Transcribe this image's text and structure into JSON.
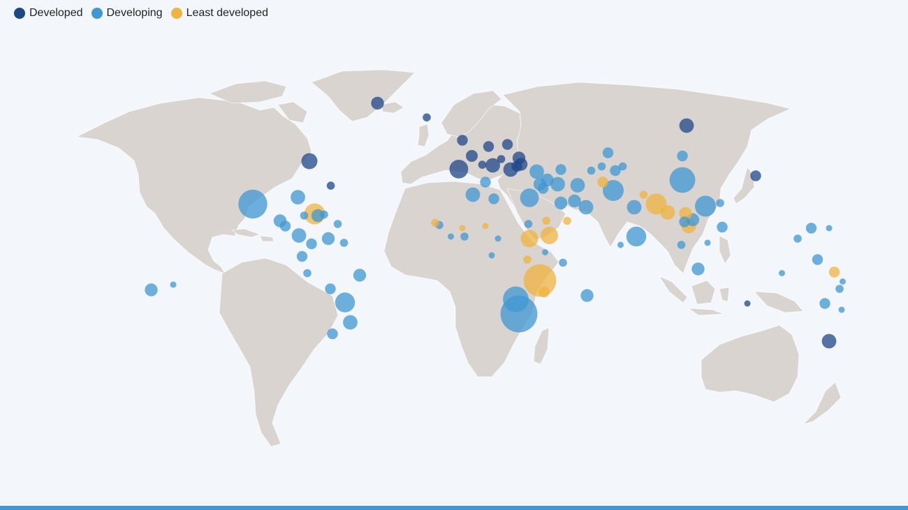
{
  "legend": {
    "items": [
      {
        "label": "Developed",
        "color": "#1f4788"
      },
      {
        "label": "Developing",
        "color": "#3f97d3"
      },
      {
        "label": "Least developed",
        "color": "#f0b340"
      }
    ]
  },
  "map": {
    "land_color": "#d9d4d0",
    "background": "#f3f7fc",
    "points": [
      {
        "lon": -42.5,
        "lat": 71.7,
        "cat": "Developed",
        "v": 3
      },
      {
        "lon": -19.0,
        "lat": 64.9,
        "cat": "Developed",
        "v": 1
      },
      {
        "lon": -2.0,
        "lat": 54.0,
        "cat": "Developed",
        "v": 2
      },
      {
        "lon": 2.5,
        "lat": 46.5,
        "cat": "Developed",
        "v": 2.5
      },
      {
        "lon": 10.5,
        "lat": 51.0,
        "cat": "Developed",
        "v": 2
      },
      {
        "lon": 19.5,
        "lat": 52.0,
        "cat": "Developed",
        "v": 2
      },
      {
        "lon": -3.7,
        "lat": 40.2,
        "cat": "Developed",
        "v": 7
      },
      {
        "lon": 12.5,
        "lat": 42.0,
        "cat": "Developed",
        "v": 4
      },
      {
        "lon": 16.5,
        "lat": 45.0,
        "cat": "Developed",
        "v": 1
      },
      {
        "lon": 21.0,
        "lat": 40.0,
        "cat": "Developed",
        "v": 4
      },
      {
        "lon": 25.0,
        "lat": 45.5,
        "cat": "Developed",
        "v": 3
      },
      {
        "lon": 24.0,
        "lat": 41.5,
        "cat": "Developed",
        "v": 2
      },
      {
        "lon": 26.0,
        "lat": 42.5,
        "cat": "Developed",
        "v": 3
      },
      {
        "lon": 7.5,
        "lat": 42.3,
        "cat": "Developed",
        "v": 1
      },
      {
        "lon": 105.0,
        "lat": 61.0,
        "cat": "Developed",
        "v": 4
      },
      {
        "lon": -75.0,
        "lat": 44.0,
        "cat": "Developed",
        "v": 5
      },
      {
        "lon": -64.8,
        "lat": 32.3,
        "cat": "Developed",
        "v": 1
      },
      {
        "lon": 138.0,
        "lat": 37.0,
        "cat": "Developed",
        "v": 2
      },
      {
        "lon": 134.0,
        "lat": -24.0,
        "cat": "Developed",
        "v": 0.5
      },
      {
        "lon": 173.0,
        "lat": -42.0,
        "cat": "Developed",
        "v": 4
      },
      {
        "lon": -102.0,
        "lat": 23.5,
        "cat": "Developing",
        "v": 18
      },
      {
        "lon": -80.5,
        "lat": 26.8,
        "cat": "Developing",
        "v": 4
      },
      {
        "lon": -71.0,
        "lat": 18.0,
        "cat": "Developing",
        "v": 3
      },
      {
        "lon": -77.5,
        "lat": 18.0,
        "cat": "Developing",
        "v": 1
      },
      {
        "lon": -68.0,
        "lat": 18.5,
        "cat": "Developing",
        "v": 1
      },
      {
        "lon": -61.5,
        "lat": 14.0,
        "cat": "Developing",
        "v": 1
      },
      {
        "lon": -89.0,
        "lat": 15.5,
        "cat": "Developing",
        "v": 3
      },
      {
        "lon": -86.5,
        "lat": 13.0,
        "cat": "Developing",
        "v": 2
      },
      {
        "lon": -80.0,
        "lat": 8.5,
        "cat": "Developing",
        "v": 4
      },
      {
        "lon": -74.0,
        "lat": 4.5,
        "cat": "Developing",
        "v": 2
      },
      {
        "lon": -66.0,
        "lat": 7.0,
        "cat": "Developing",
        "v": 3
      },
      {
        "lon": -58.5,
        "lat": 5.0,
        "cat": "Developing",
        "v": 1
      },
      {
        "lon": -78.5,
        "lat": -1.5,
        "cat": "Developing",
        "v": 2
      },
      {
        "lon": -76.0,
        "lat": -9.5,
        "cat": "Developing",
        "v": 1
      },
      {
        "lon": -51.0,
        "lat": -10.5,
        "cat": "Developing",
        "v": 3
      },
      {
        "lon": -65.0,
        "lat": -17.0,
        "cat": "Developing",
        "v": 2
      },
      {
        "lon": -58.0,
        "lat": -23.5,
        "cat": "Developing",
        "v": 8
      },
      {
        "lon": -55.5,
        "lat": -33.0,
        "cat": "Developing",
        "v": 4
      },
      {
        "lon": -64.0,
        "lat": -38.5,
        "cat": "Developing",
        "v": 2
      },
      {
        "lon": -150.5,
        "lat": -17.5,
        "cat": "Developing",
        "v": 3
      },
      {
        "lon": -140.0,
        "lat": -15.0,
        "cat": "Developing",
        "v": 0.5
      },
      {
        "lon": 3.0,
        "lat": 28.0,
        "cat": "Developing",
        "v": 4
      },
      {
        "lon": 13.0,
        "lat": 26.0,
        "cat": "Developing",
        "v": 2
      },
      {
        "lon": 30.0,
        "lat": 26.5,
        "cat": "Developing",
        "v": 7
      },
      {
        "lon": 9.0,
        "lat": 34.0,
        "cat": "Developing",
        "v": 2
      },
      {
        "lon": 35.0,
        "lat": 33.0,
        "cat": "Developing",
        "v": 3
      },
      {
        "lon": 36.5,
        "lat": 31.0,
        "cat": "Developing",
        "v": 2
      },
      {
        "lon": 43.5,
        "lat": 33.0,
        "cat": "Developing",
        "v": 4
      },
      {
        "lon": 38.5,
        "lat": 35.0,
        "cat": "Developing",
        "v": 3
      },
      {
        "lon": 33.5,
        "lat": 39.0,
        "cat": "Developing",
        "v": 4
      },
      {
        "lon": 45.0,
        "lat": 40.0,
        "cat": "Developing",
        "v": 2
      },
      {
        "lon": 53.0,
        "lat": 32.5,
        "cat": "Developing",
        "v": 4
      },
      {
        "lon": 45.0,
        "lat": 24.0,
        "cat": "Developing",
        "v": 3
      },
      {
        "lon": 51.5,
        "lat": 25.0,
        "cat": "Developing",
        "v": 3
      },
      {
        "lon": 57.0,
        "lat": 22.0,
        "cat": "Developing",
        "v": 4
      },
      {
        "lon": 59.5,
        "lat": 39.5,
        "cat": "Developing",
        "v": 1
      },
      {
        "lon": 64.5,
        "lat": 41.5,
        "cat": "Developing",
        "v": 1
      },
      {
        "lon": 70.0,
        "lat": 30.0,
        "cat": "Developing",
        "v": 9
      },
      {
        "lon": 67.5,
        "lat": 48.0,
        "cat": "Developing",
        "v": 2
      },
      {
        "lon": 71.0,
        "lat": 39.5,
        "cat": "Developing",
        "v": 2
      },
      {
        "lon": 74.5,
        "lat": 41.5,
        "cat": "Developing",
        "v": 1
      },
      {
        "lon": 103.0,
        "lat": 46.5,
        "cat": "Developing",
        "v": 2
      },
      {
        "lon": 103.0,
        "lat": 35.0,
        "cat": "Developing",
        "v": 14
      },
      {
        "lon": 80.0,
        "lat": 22.0,
        "cat": "Developing",
        "v": 4
      },
      {
        "lon": 81.0,
        "lat": 8.0,
        "cat": "Developing",
        "v": 8
      },
      {
        "lon": 73.5,
        "lat": 4.0,
        "cat": "Developing",
        "v": 0.5
      },
      {
        "lon": 114.0,
        "lat": 22.5,
        "cat": "Developing",
        "v": 9
      },
      {
        "lon": 121.0,
        "lat": 24.0,
        "cat": "Developing",
        "v": 1
      },
      {
        "lon": 108.0,
        "lat": 16.0,
        "cat": "Developing",
        "v": 3
      },
      {
        "lon": 104.0,
        "lat": 15.0,
        "cat": "Developing",
        "v": 2
      },
      {
        "lon": 102.5,
        "lat": 4.0,
        "cat": "Developing",
        "v": 1
      },
      {
        "lon": 110.5,
        "lat": -7.5,
        "cat": "Developing",
        "v": 3
      },
      {
        "lon": 122.0,
        "lat": 12.5,
        "cat": "Developing",
        "v": 2
      },
      {
        "lon": 115.0,
        "lat": 5.0,
        "cat": "Developing",
        "v": 0.5
      },
      {
        "lon": 29.5,
        "lat": 14.0,
        "cat": "Developing",
        "v": 1
      },
      {
        "lon": 15.0,
        "lat": 7.0,
        "cat": "Developing",
        "v": 0.5
      },
      {
        "lon": 12.0,
        "lat": -1.0,
        "cat": "Developing",
        "v": 0.5
      },
      {
        "lon": 37.5,
        "lat": 0.5,
        "cat": "Developing",
        "v": 0.5
      },
      {
        "lon": 46.0,
        "lat": -4.5,
        "cat": "Developing",
        "v": 1
      },
      {
        "lon": 57.5,
        "lat": -20.2,
        "cat": "Developing",
        "v": 3
      },
      {
        "lon": 23.5,
        "lat": -22.0,
        "cat": "Developing",
        "v": 14
      },
      {
        "lon": 25.0,
        "lat": -29.0,
        "cat": "Developing",
        "v": 30
      },
      {
        "lon": -13.0,
        "lat": 13.5,
        "cat": "Developing",
        "v": 1
      },
      {
        "lon": -1.0,
        "lat": 8.0,
        "cat": "Developing",
        "v": 1
      },
      {
        "lon": -7.5,
        "lat": 8.0,
        "cat": "Developing",
        "v": 0.5
      },
      {
        "lon": 150.5,
        "lat": -9.5,
        "cat": "Developing",
        "v": 0.5
      },
      {
        "lon": 158.0,
        "lat": 7.0,
        "cat": "Developing",
        "v": 1
      },
      {
        "lon": 164.5,
        "lat": 12.0,
        "cat": "Developing",
        "v": 2
      },
      {
        "lon": 173.0,
        "lat": 12.0,
        "cat": "Developing",
        "v": 0.5
      },
      {
        "lon": 167.5,
        "lat": -3.0,
        "cat": "Developing",
        "v": 2
      },
      {
        "lon": 178.0,
        "lat": -17.0,
        "cat": "Developing",
        "v": 1
      },
      {
        "lon": 179.5,
        "lat": -13.5,
        "cat": "Developing",
        "v": 0.5
      },
      {
        "lon": 171.0,
        "lat": -24.0,
        "cat": "Developing",
        "v": 2
      },
      {
        "lon": 179.0,
        "lat": -27.0,
        "cat": "Developing",
        "v": 0.5
      },
      {
        "lon": -72.5,
        "lat": 18.8,
        "cat": "Least developed",
        "v": 9
      },
      {
        "lon": -15.0,
        "lat": 14.5,
        "cat": "Least developed",
        "v": 1
      },
      {
        "lon": -2.0,
        "lat": 12.0,
        "cat": "Least developed",
        "v": 0.5
      },
      {
        "lon": 9.0,
        "lat": 13.0,
        "cat": "Least developed",
        "v": 0.5
      },
      {
        "lon": 30.0,
        "lat": 7.0,
        "cat": "Least developed",
        "v": 6
      },
      {
        "lon": 39.5,
        "lat": 8.5,
        "cat": "Least developed",
        "v": 6
      },
      {
        "lon": 38.0,
        "lat": 15.5,
        "cat": "Least developed",
        "v": 1
      },
      {
        "lon": 48.0,
        "lat": 15.5,
        "cat": "Least developed",
        "v": 1
      },
      {
        "lon": 65.0,
        "lat": 34.0,
        "cat": "Least developed",
        "v": 2
      },
      {
        "lon": 84.5,
        "lat": 28.0,
        "cat": "Least developed",
        "v": 1
      },
      {
        "lon": 90.5,
        "lat": 23.5,
        "cat": "Least developed",
        "v": 9
      },
      {
        "lon": 96.0,
        "lat": 19.5,
        "cat": "Least developed",
        "v": 4
      },
      {
        "lon": 104.5,
        "lat": 19.0,
        "cat": "Least developed",
        "v": 3
      },
      {
        "lon": 106.0,
        "lat": 13.0,
        "cat": "Least developed",
        "v": 4
      },
      {
        "lon": 29.0,
        "lat": -3.0,
        "cat": "Least developed",
        "v": 1
      },
      {
        "lon": 35.0,
        "lat": -13.0,
        "cat": "Least developed",
        "v": 23
      },
      {
        "lon": 37.0,
        "lat": -18.5,
        "cat": "Least developed",
        "v": 2
      },
      {
        "lon": 175.5,
        "lat": -9.0,
        "cat": "Least developed",
        "v": 2
      }
    ]
  }
}
